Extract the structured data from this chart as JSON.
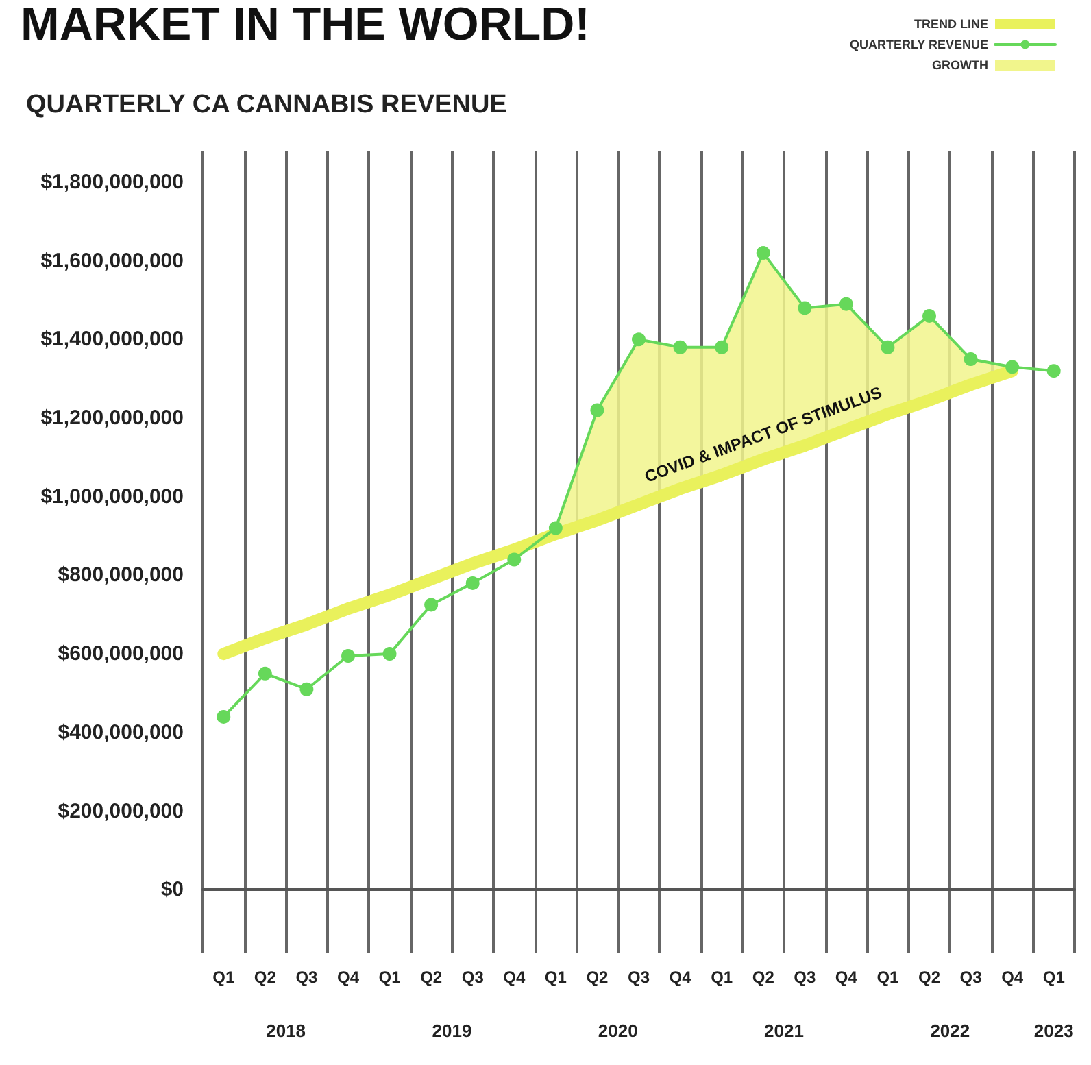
{
  "chart_data": {
    "type": "line",
    "title": "MARKET IN THE WORLD!",
    "subtitle": "QUARTERLY CA CANNABIS REVENUE",
    "categories": [
      "Q1",
      "Q2",
      "Q3",
      "Q4",
      "Q1",
      "Q2",
      "Q3",
      "Q4",
      "Q1",
      "Q2",
      "Q3",
      "Q4",
      "Q1",
      "Q2",
      "Q3",
      "Q4",
      "Q1",
      "Q2",
      "Q3",
      "Q4",
      "Q1"
    ],
    "series": [
      {
        "name": "TREND LINE",
        "type": "line",
        "color": "#e9f15c",
        "marker": "none",
        "values": [
          600000000,
          640000000,
          675000000,
          715000000,
          750000000,
          790000000,
          830000000,
          865000000,
          905000000,
          940000000,
          980000000,
          1020000000,
          1055000000,
          1095000000,
          1130000000,
          1170000000,
          1210000000,
          1245000000,
          1285000000,
          1320000000,
          null
        ]
      },
      {
        "name": "QUARTERLY REVENUE",
        "type": "line",
        "color": "#66d85a",
        "marker": "circle",
        "values": [
          440000000,
          550000000,
          510000000,
          595000000,
          600000000,
          725000000,
          780000000,
          840000000,
          920000000,
          1220000000,
          1400000000,
          1380000000,
          1380000000,
          1620000000,
          1480000000,
          1490000000,
          1380000000,
          1460000000,
          1350000000,
          1330000000,
          1320000000
        ]
      },
      {
        "name": "GROWTH",
        "type": "area",
        "color": "#f1f58c",
        "values": [
          null,
          null,
          null,
          null,
          null,
          null,
          null,
          null,
          920000000,
          1220000000,
          1400000000,
          1380000000,
          1380000000,
          1620000000,
          1480000000,
          1490000000,
          1380000000,
          1460000000,
          1350000000,
          1330000000,
          null
        ]
      }
    ],
    "ylim": [
      -160000000,
      1880000000
    ],
    "yticks": [
      {
        "value": 0,
        "label": "$0"
      },
      {
        "value": 200000000,
        "label": "$200,000,000"
      },
      {
        "value": 400000000,
        "label": "$400,000,000"
      },
      {
        "value": 600000000,
        "label": "$600,000,000"
      },
      {
        "value": 800000000,
        "label": "$800,000,000"
      },
      {
        "value": 1000000000,
        "label": "$1,000,000,000"
      },
      {
        "value": 1200000000,
        "label": "$1,200,000,000"
      },
      {
        "value": 1400000000,
        "label": "$1,400,000,000"
      },
      {
        "value": 1600000000,
        "label": "$1,600,000,000"
      },
      {
        "value": 1800000000,
        "label": "$1,800,000,000"
      }
    ],
    "annotations": [
      "COVID & IMPACT OF STIMULUS",
      "2018",
      "2019",
      "2020",
      "2021",
      "2022",
      "2023"
    ],
    "grid": "x",
    "legend": "top right",
    "line_style": "solid"
  }
}
